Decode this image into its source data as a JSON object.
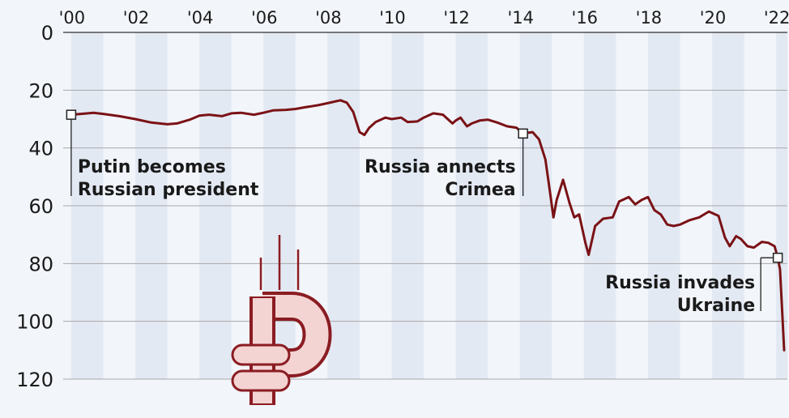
{
  "chart_data": {
    "type": "line",
    "title": "",
    "xlabel": "",
    "ylabel": "",
    "x_tick_labels": [
      "'00",
      "'02",
      "'04",
      "'06",
      "'08",
      "'10",
      "'12",
      "'14",
      "'16",
      "'18",
      "'20",
      "'22"
    ],
    "x_tick_years": [
      2000,
      2002,
      2004,
      2006,
      2008,
      2010,
      2012,
      2014,
      2016,
      2018,
      2020,
      2022
    ],
    "y_tick_labels": [
      "0",
      "20",
      "40",
      "60",
      "80",
      "100",
      "120"
    ],
    "y_ticks": [
      0,
      20,
      40,
      60,
      80,
      100,
      120
    ],
    "xlim": [
      1999.75,
      2022.35
    ],
    "ylim": [
      0,
      120
    ],
    "y_inverted": true,
    "grid": "horizontal lines with alternating vertical year bands",
    "colors": {
      "line": "#7a1216",
      "band": "#e3e9f3",
      "background": "#f2f5fa",
      "ruble": "#8a1c22",
      "ruble_fill": "#f4d3d3"
    },
    "series": [
      {
        "values": [
          [
            2000.0,
            28.5
          ],
          [
            2000.3,
            28.2
          ],
          [
            2000.7,
            27.8
          ],
          [
            2001.0,
            28.2
          ],
          [
            2001.5,
            29.0
          ],
          [
            2002.0,
            30.0
          ],
          [
            2002.5,
            31.2
          ],
          [
            2003.0,
            31.8
          ],
          [
            2003.3,
            31.5
          ],
          [
            2003.7,
            30.2
          ],
          [
            2004.0,
            28.8
          ],
          [
            2004.3,
            28.5
          ],
          [
            2004.7,
            29.0
          ],
          [
            2005.0,
            28.0
          ],
          [
            2005.3,
            27.8
          ],
          [
            2005.7,
            28.5
          ],
          [
            2006.0,
            27.8
          ],
          [
            2006.3,
            27.0
          ],
          [
            2006.7,
            26.8
          ],
          [
            2007.0,
            26.5
          ],
          [
            2007.3,
            25.9
          ],
          [
            2007.7,
            25.2
          ],
          [
            2008.0,
            24.5
          ],
          [
            2008.4,
            23.5
          ],
          [
            2008.6,
            24.3
          ],
          [
            2008.8,
            27.5
          ],
          [
            2009.0,
            34.5
          ],
          [
            2009.15,
            35.5
          ],
          [
            2009.3,
            33.0
          ],
          [
            2009.5,
            31.0
          ],
          [
            2009.8,
            29.5
          ],
          [
            2010.0,
            30.0
          ],
          [
            2010.3,
            29.5
          ],
          [
            2010.5,
            31.0
          ],
          [
            2010.8,
            30.8
          ],
          [
            2011.0,
            29.5
          ],
          [
            2011.3,
            28.0
          ],
          [
            2011.6,
            28.5
          ],
          [
            2011.9,
            31.5
          ],
          [
            2012.0,
            30.5
          ],
          [
            2012.15,
            29.5
          ],
          [
            2012.35,
            32.5
          ],
          [
            2012.5,
            31.5
          ],
          [
            2012.75,
            30.5
          ],
          [
            2013.0,
            30.2
          ],
          [
            2013.3,
            31.2
          ],
          [
            2013.6,
            32.5
          ],
          [
            2013.9,
            33.0
          ],
          [
            2014.1,
            35.0
          ],
          [
            2014.4,
            34.5
          ],
          [
            2014.6,
            37.0
          ],
          [
            2014.8,
            44.0
          ],
          [
            2014.95,
            56.0
          ],
          [
            2015.05,
            64.0
          ],
          [
            2015.15,
            58.0
          ],
          [
            2015.35,
            51.0
          ],
          [
            2015.55,
            59.0
          ],
          [
            2015.7,
            64.0
          ],
          [
            2015.85,
            63.0
          ],
          [
            2016.05,
            73.0
          ],
          [
            2016.15,
            77.0
          ],
          [
            2016.35,
            67.0
          ],
          [
            2016.6,
            64.5
          ],
          [
            2016.9,
            64.0
          ],
          [
            2017.1,
            58.5
          ],
          [
            2017.4,
            57.0
          ],
          [
            2017.6,
            59.5
          ],
          [
            2017.8,
            58.0
          ],
          [
            2018.0,
            57.0
          ],
          [
            2018.2,
            61.5
          ],
          [
            2018.4,
            63.0
          ],
          [
            2018.6,
            66.5
          ],
          [
            2018.8,
            67.0
          ],
          [
            2019.0,
            66.5
          ],
          [
            2019.3,
            65.0
          ],
          [
            2019.6,
            64.0
          ],
          [
            2019.9,
            62.0
          ],
          [
            2020.2,
            63.5
          ],
          [
            2020.4,
            71.0
          ],
          [
            2020.55,
            74.0
          ],
          [
            2020.75,
            70.5
          ],
          [
            2020.9,
            71.5
          ],
          [
            2021.1,
            74.0
          ],
          [
            2021.3,
            74.5
          ],
          [
            2021.55,
            72.5
          ],
          [
            2021.75,
            72.8
          ],
          [
            2021.95,
            74.0
          ],
          [
            2022.05,
            78.0
          ],
          [
            2022.12,
            82.0
          ],
          [
            2022.18,
            95.0
          ],
          [
            2022.25,
            110.0
          ]
        ]
      }
    ],
    "annotations": [
      {
        "x": 2000.0,
        "y": 28.5,
        "lines": [
          "Putin becomes",
          "Russian president"
        ]
      },
      {
        "x": 2014.1,
        "y": 35.0,
        "lines": [
          "Russia annects",
          "Crimea"
        ]
      },
      {
        "x": 2022.05,
        "y": 78.0,
        "lines": [
          "Russia invades",
          "Ukraine"
        ]
      }
    ],
    "decoration": "ruble-icon"
  }
}
